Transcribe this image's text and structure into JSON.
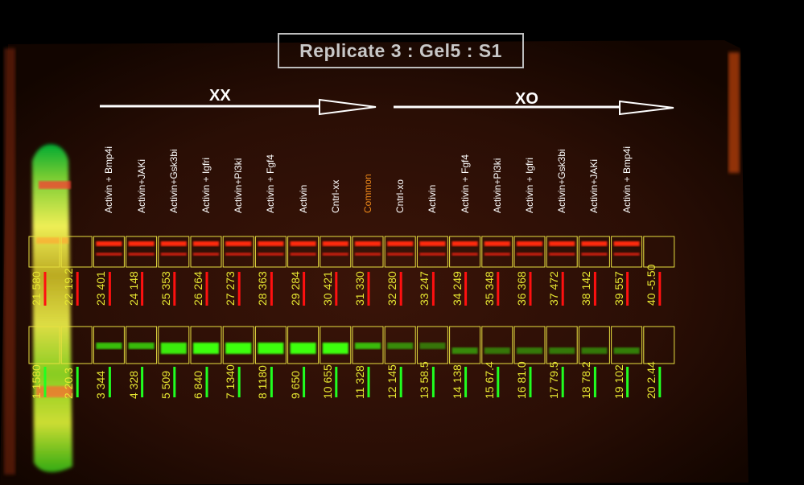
{
  "title": "Replicate 3 : Gel5 : S1",
  "groups": {
    "xx": "XX",
    "xo": "XO"
  },
  "lanes": [
    {
      "label": "",
      "red_id": "21",
      "red_val": "580",
      "green_id": "1",
      "green_val": "1580"
    },
    {
      "label": "",
      "red_id": "22",
      "red_val": "19.2",
      "green_id": "2",
      "green_val": "20.3"
    },
    {
      "label": "Activin + Bmp4i",
      "red_id": "23",
      "red_val": "401",
      "green_id": "3",
      "green_val": "344"
    },
    {
      "label": "Activin+JAKi",
      "red_id": "24",
      "red_val": "148",
      "green_id": "4",
      "green_val": "328"
    },
    {
      "label": "Activin+Gsk3bi",
      "red_id": "25",
      "red_val": "353",
      "green_id": "5",
      "green_val": "509"
    },
    {
      "label": "Activin + Igfri",
      "red_id": "26",
      "red_val": "264",
      "green_id": "6",
      "green_val": "840"
    },
    {
      "label": "Activin+Pi3ki",
      "red_id": "27",
      "red_val": "273",
      "green_id": "7",
      "green_val": "1340"
    },
    {
      "label": "Activin + Fgf4",
      "red_id": "28",
      "red_val": "363",
      "green_id": "8",
      "green_val": "1180"
    },
    {
      "label": "Activin",
      "red_id": "29",
      "red_val": "284",
      "green_id": "9",
      "green_val": "650"
    },
    {
      "label": "Cntrl-xx",
      "red_id": "30",
      "red_val": "421",
      "green_id": "10",
      "green_val": "655"
    },
    {
      "label": "Common",
      "red_id": "31",
      "red_val": "330",
      "green_id": "11",
      "green_val": "328",
      "highlight": true
    },
    {
      "label": "Cntrl-xo",
      "red_id": "32",
      "red_val": "280",
      "green_id": "12",
      "green_val": "145"
    },
    {
      "label": "Activin",
      "red_id": "33",
      "red_val": "247",
      "green_id": "13",
      "green_val": "58.5"
    },
    {
      "label": "Activin + Fgf4",
      "red_id": "34",
      "red_val": "249",
      "green_id": "14",
      "green_val": "138"
    },
    {
      "label": "Activin+Pi3ki",
      "red_id": "35",
      "red_val": "348",
      "green_id": "15",
      "green_val": "67.4"
    },
    {
      "label": "Activin + Igfri",
      "red_id": "36",
      "red_val": "368",
      "green_id": "16",
      "green_val": "81.0"
    },
    {
      "label": "Activin+Gsk3bi",
      "red_id": "37",
      "red_val": "472",
      "green_id": "17",
      "green_val": "79.5"
    },
    {
      "label": "Activin+JAKi",
      "red_id": "38",
      "red_val": "142",
      "green_id": "18",
      "green_val": "78.2"
    },
    {
      "label": "Activin + Bmp4i",
      "red_id": "39",
      "red_val": "557",
      "green_id": "19",
      "green_val": "102"
    },
    {
      "label": "",
      "red_id": "40",
      "red_val": "-5.50",
      "green_id": "20",
      "green_val": "2.44"
    }
  ]
}
